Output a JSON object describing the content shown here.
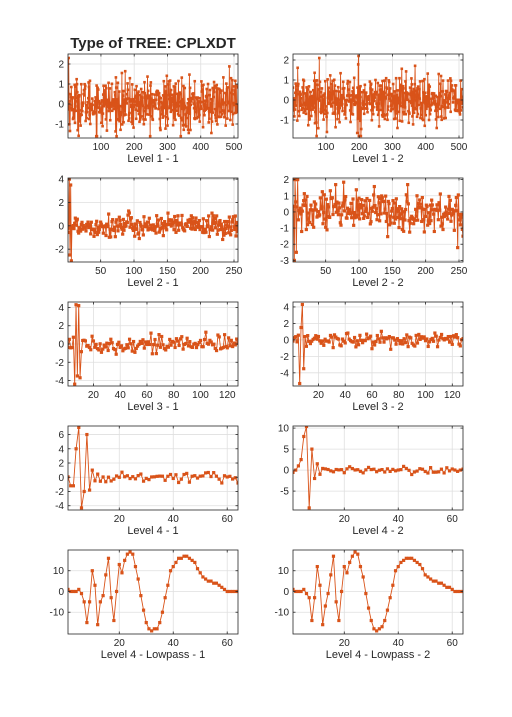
{
  "figure": {
    "title": "Type of TREE: CPLXDT",
    "line_color": "#D95319"
  },
  "chart_data": [
    {
      "type": "line",
      "xlabel": "Level 1 - 1",
      "n": 512,
      "xlim": [
        1,
        512
      ],
      "ylim": [
        -1.7,
        2.5
      ],
      "xticks": [
        100,
        200,
        300,
        400,
        500
      ],
      "yticks": [
        -1,
        0,
        1,
        2
      ],
      "grid": true,
      "series": [
        {
          "gen": "noise",
          "amp": 1.15,
          "spike_at": [
            3
          ],
          "spike_vals": [
            2.3
          ]
        }
      ]
    },
    {
      "type": "line",
      "xlabel": "Level 1 - 2",
      "n": 512,
      "xlim": [
        1,
        512
      ],
      "ylim": [
        -1.9,
        2.3
      ],
      "xticks": [
        100,
        200,
        300,
        400,
        500
      ],
      "yticks": [
        -1,
        0,
        1,
        2
      ],
      "grid": true,
      "series": [
        {
          "gen": "noise",
          "amp": 1.15,
          "spike_at": [
            80,
            198
          ],
          "spike_vals": [
            2.1,
            2.2
          ]
        }
      ]
    },
    {
      "type": "line",
      "xlabel": "Level 2 - 1",
      "n": 256,
      "xlim": [
        1,
        256
      ],
      "ylim": [
        -3.1,
        4.1
      ],
      "xticks": [
        50,
        100,
        150,
        200,
        250
      ],
      "yticks": [
        -2,
        0,
        2,
        4
      ],
      "grid": true,
      "series": [
        {
          "gen": "noise",
          "amp": 0.9,
          "spike_at": [
            3,
            4,
            5,
            6
          ],
          "spike_vals": [
            4,
            -2.5,
            3.5,
            -3
          ]
        }
      ]
    },
    {
      "type": "line",
      "xlabel": "Level 2 - 2",
      "n": 256,
      "xlim": [
        1,
        256
      ],
      "ylim": [
        -3.1,
        2.1
      ],
      "xticks": [
        50,
        100,
        150,
        200,
        250
      ],
      "yticks": [
        -3,
        -2,
        -1,
        0,
        1,
        2
      ],
      "grid": true,
      "series": [
        {
          "gen": "noise",
          "amp": 1.2,
          "spike_at": [
            3,
            4,
            6,
            8
          ],
          "spike_vals": [
            -3,
            2,
            -2.5,
            2
          ]
        }
      ]
    },
    {
      "type": "line",
      "xlabel": "Level 3 - 1",
      "n": 128,
      "xlim": [
        1,
        128
      ],
      "ylim": [
        -4.6,
        4.6
      ],
      "xticks": [
        20,
        40,
        60,
        80,
        100,
        120
      ],
      "yticks": [
        -4,
        -2,
        0,
        2,
        4
      ],
      "grid": true,
      "series": [
        {
          "gen": "noise",
          "amp": 0.9,
          "spike_at": [
            6,
            7,
            8,
            9,
            10
          ],
          "spike_vals": [
            -4.4,
            4.3,
            -3.5,
            4.2,
            -3.7
          ]
        }
      ]
    },
    {
      "type": "line",
      "xlabel": "Level 3 - 2",
      "n": 128,
      "xlim": [
        1,
        128
      ],
      "ylim": [
        -5.6,
        4.6
      ],
      "xticks": [
        20,
        40,
        60,
        80,
        100,
        120
      ],
      "yticks": [
        -4,
        -2,
        0,
        2,
        4
      ],
      "grid": true,
      "series": [
        {
          "gen": "noise",
          "amp": 0.9,
          "spike_at": [
            6,
            7,
            8,
            9
          ],
          "spike_vals": [
            -5.3,
            1.5,
            4.3,
            -3.5
          ]
        }
      ]
    },
    {
      "type": "line",
      "xlabel": "Level 4 - 1",
      "n": 64,
      "xlim": [
        1,
        64
      ],
      "ylim": [
        -4.6,
        7.2
      ],
      "xticks": [
        20,
        40,
        60
      ],
      "yticks": [
        -4,
        -2,
        0,
        2,
        4,
        6
      ],
      "grid": true,
      "series": [
        {
          "gen": "noise",
          "amp": 0.7,
          "spike_at": [
            2,
            3,
            4,
            5,
            6,
            7,
            8,
            9,
            10,
            11
          ],
          "spike_vals": [
            -1.2,
            -1.2,
            4,
            7,
            -4.3,
            -2,
            6,
            -1.8,
            1,
            -0.5
          ]
        }
      ]
    },
    {
      "type": "line",
      "xlabel": "Level 4 - 2",
      "n": 64,
      "xlim": [
        1,
        64
      ],
      "ylim": [
        -9.5,
        10.5
      ],
      "xticks": [
        20,
        40,
        60
      ],
      "yticks": [
        -5,
        0,
        5,
        10
      ],
      "grid": true,
      "series": [
        {
          "gen": "noise",
          "amp": 0.7,
          "spike_at": [
            2,
            3,
            4,
            5,
            6,
            7,
            8,
            9,
            10,
            11
          ],
          "spike_vals": [
            0,
            1,
            2.5,
            8,
            10.4,
            -9,
            5,
            -2,
            1.5,
            -1
          ]
        }
      ]
    },
    {
      "type": "line",
      "xlabel": "Level 4 - Lowpass - 1",
      "n": 64,
      "xlim": [
        1,
        64
      ],
      "ylim": [
        -20.5,
        20
      ],
      "xticks": [
        20,
        40,
        60
      ],
      "yticks": [
        -10,
        0,
        10
      ],
      "grid": true,
      "series": [
        {
          "values": [
            1,
            0,
            0,
            0,
            1,
            -1,
            -5,
            -15,
            -5,
            10,
            3,
            -16,
            -5,
            -2,
            8,
            16,
            -3,
            -14,
            0,
            13,
            9,
            15,
            18,
            19,
            18,
            12,
            6,
            -2,
            -9,
            -15,
            -18,
            -19,
            -18,
            -18,
            -15,
            -10,
            -3,
            3,
            10,
            12,
            14,
            16,
            16,
            17,
            17,
            16,
            15,
            14,
            11,
            9,
            7,
            6,
            5,
            5,
            4,
            4,
            3,
            2,
            1,
            0,
            0,
            0,
            0,
            0
          ]
        }
      ]
    },
    {
      "type": "line",
      "xlabel": "Level 4 - Lowpass - 2",
      "n": 64,
      "xlim": [
        1,
        64
      ],
      "ylim": [
        -20.5,
        20
      ],
      "xticks": [
        20,
        40,
        60
      ],
      "yticks": [
        -10,
        0,
        10
      ],
      "grid": true,
      "series": [
        {
          "values": [
            1,
            0,
            0,
            0,
            1,
            -1,
            -3,
            -14,
            -3,
            12,
            3,
            -16,
            -7,
            -1,
            8,
            17,
            -5,
            -14,
            0,
            12,
            9,
            14,
            17,
            19,
            18,
            12,
            7,
            -1,
            -8,
            -14,
            -18,
            -19,
            -18,
            -17,
            -14,
            -9,
            -3,
            3,
            10,
            12,
            14,
            15,
            16,
            16,
            16,
            15,
            14,
            13,
            11,
            8,
            7,
            6,
            5,
            5,
            4,
            4,
            3,
            2,
            2,
            1,
            0,
            0,
            0,
            0
          ]
        }
      ]
    }
  ]
}
